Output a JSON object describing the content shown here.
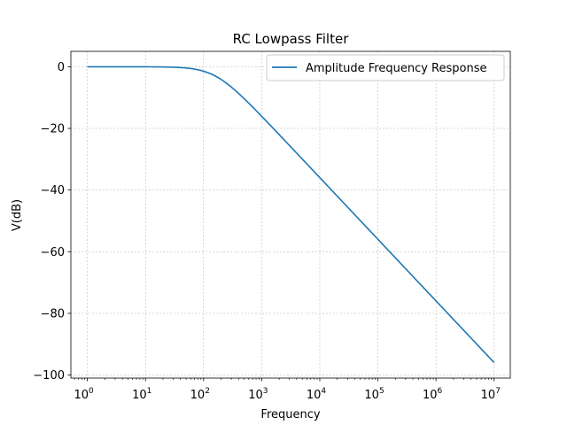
{
  "chart_data": {
    "type": "line",
    "title": "RC Lowpass Filter",
    "xlabel": "Frequency",
    "ylabel": "V(dB)",
    "xscale": "log",
    "xlim": [
      0.52,
      19000000
    ],
    "ylim": [
      -101,
      5
    ],
    "x_tick_values": [
      1,
      10,
      100,
      1000,
      10000,
      100000,
      1000000,
      10000000
    ],
    "x_tick_base": "10",
    "x_tick_exponents": [
      "0",
      "1",
      "2",
      "3",
      "4",
      "5",
      "6",
      "7"
    ],
    "y_ticks": [
      0,
      -20,
      -40,
      -60,
      -80,
      -100
    ],
    "y_tick_labels": [
      "0",
      "−20",
      "−40",
      "−60",
      "−80",
      "−100"
    ],
    "grid": true,
    "legend_position": "top-right",
    "series": [
      {
        "name": "Amplitude Frequency Response",
        "color": "#1f77b4",
        "cutoff_frequency": 159.15,
        "x": [
          1,
          10,
          30,
          50,
          80,
          100,
          159.15,
          250,
          400,
          1000,
          3000,
          10000,
          100000,
          1000000,
          10000000
        ],
        "values": [
          0.0,
          -0.02,
          -0.15,
          -0.41,
          -0.97,
          -1.45,
          -3.01,
          -5.46,
          -8.66,
          -16.12,
          -25.52,
          -35.96,
          -55.96,
          -75.96,
          -95.96
        ]
      }
    ]
  }
}
